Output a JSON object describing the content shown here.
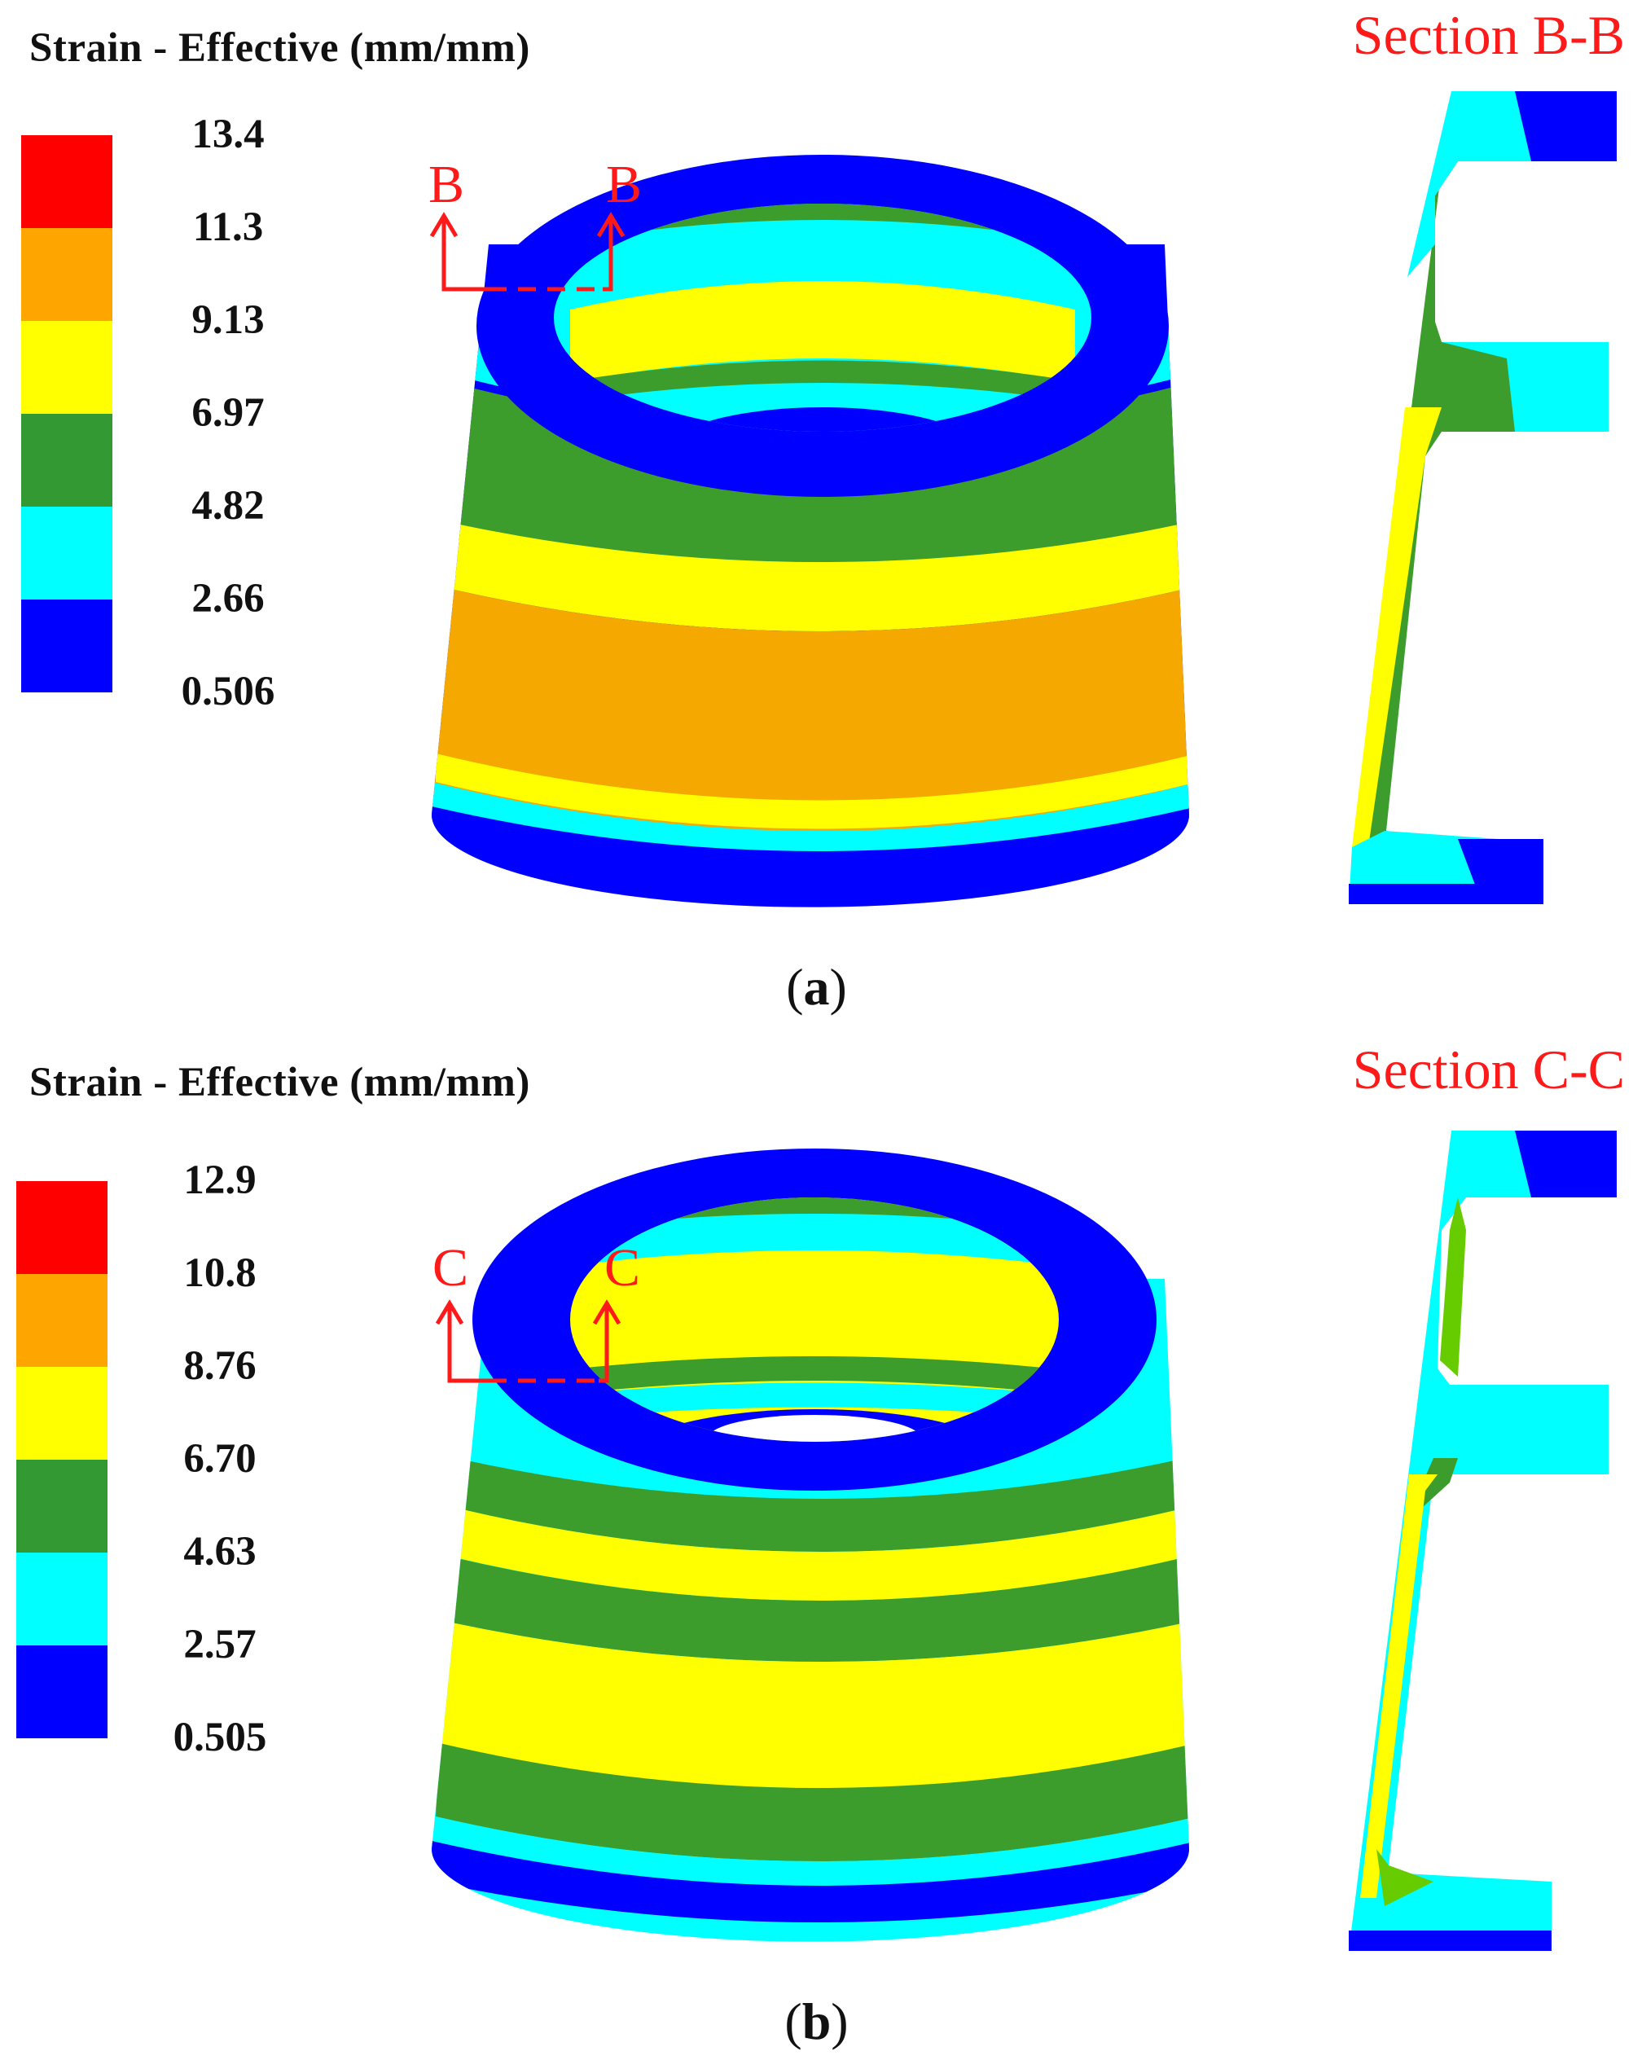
{
  "panels": [
    {
      "caption_open": "(",
      "caption_letter": "a",
      "caption_close": ")",
      "legend_title": "Strain - Effective (mm/mm)",
      "legend_ticks": [
        "13.4",
        "11.3",
        "9.13",
        "6.97",
        "4.82",
        "2.66",
        "0.506"
      ],
      "section_title": "Section B-B",
      "cut_label_left": "B",
      "cut_label_right": "B"
    },
    {
      "caption_open": "(",
      "caption_letter": "b",
      "caption_close": ")",
      "legend_title": "Strain - Effective (mm/mm)",
      "legend_ticks": [
        "12.9",
        "10.8",
        "8.76",
        "6.70",
        "4.63",
        "2.57",
        "0.505"
      ],
      "section_title": "Section C-C",
      "cut_label_left": "C",
      "cut_label_right": "C"
    }
  ],
  "legend_colors": [
    "#ff0000",
    "#ffa500",
    "#ffff00",
    "#339933",
    "#00ffff",
    "#0000ff"
  ],
  "contour_colors": {
    "red": "#ff0000",
    "orange": "#f5a800",
    "yellow": "#ffff00",
    "green": "#3c9c2c",
    "light_green": "#66cc00",
    "cyan": "#00ffff",
    "blue": "#0000ff"
  },
  "annotation_color": "#ff1a1a"
}
